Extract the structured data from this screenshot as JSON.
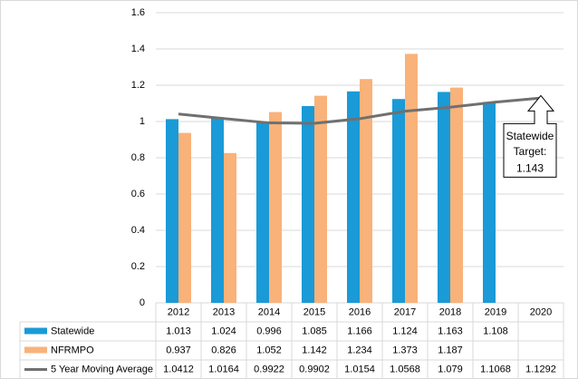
{
  "chart_data": {
    "type": "bar",
    "categories": [
      "2012",
      "2013",
      "2014",
      "2015",
      "2016",
      "2017",
      "2018",
      "2019",
      "2020"
    ],
    "series": [
      {
        "name": "Statewide",
        "type": "bar",
        "color": "#1a9ad6",
        "values": [
          1.013,
          1.024,
          0.996,
          1.085,
          1.166,
          1.124,
          1.163,
          1.108,
          null
        ]
      },
      {
        "name": "NFRMPO",
        "type": "bar",
        "color": "#f9b27a",
        "values": [
          0.937,
          0.826,
          1.052,
          1.142,
          1.234,
          1.373,
          1.187,
          null,
          null
        ]
      },
      {
        "name": "5 Year Moving Average",
        "type": "line",
        "color": "#707070",
        "values": [
          1.0412,
          1.0164,
          0.9922,
          0.9902,
          1.0154,
          1.0568,
          1.079,
          1.1068,
          1.1292
        ]
      }
    ],
    "ylim": [
      0,
      1.6
    ],
    "yticks": [
      0,
      0.2,
      0.4,
      0.6,
      0.8,
      1,
      1.2,
      1.4,
      1.6
    ],
    "grid": true,
    "data_table": true,
    "annotation": {
      "label": "Statewide Target:",
      "value": 1.143,
      "category": 8
    }
  }
}
